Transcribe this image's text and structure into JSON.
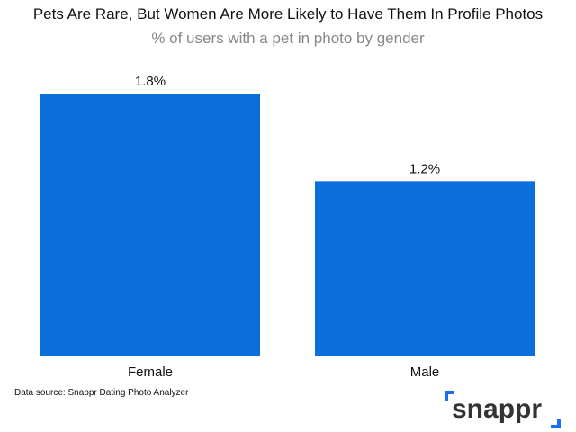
{
  "chart_data": {
    "type": "bar",
    "title": "Pets Are Rare, But Women Are More Likely to Have Them In Profile Photos",
    "subtitle": "% of users with a pet in photo by gender",
    "categories": [
      "Female",
      "Male"
    ],
    "values": [
      1.8,
      1.2
    ],
    "data_labels": [
      "1.8%",
      "1.2%"
    ],
    "ylim": [
      0,
      1.8
    ],
    "grid": false,
    "bar_color": "#0a6fdb"
  },
  "source": "Data source: Snappr Dating Photo Analyzer",
  "logo": {
    "text": "snappr",
    "accent": "#1a6ef5"
  }
}
